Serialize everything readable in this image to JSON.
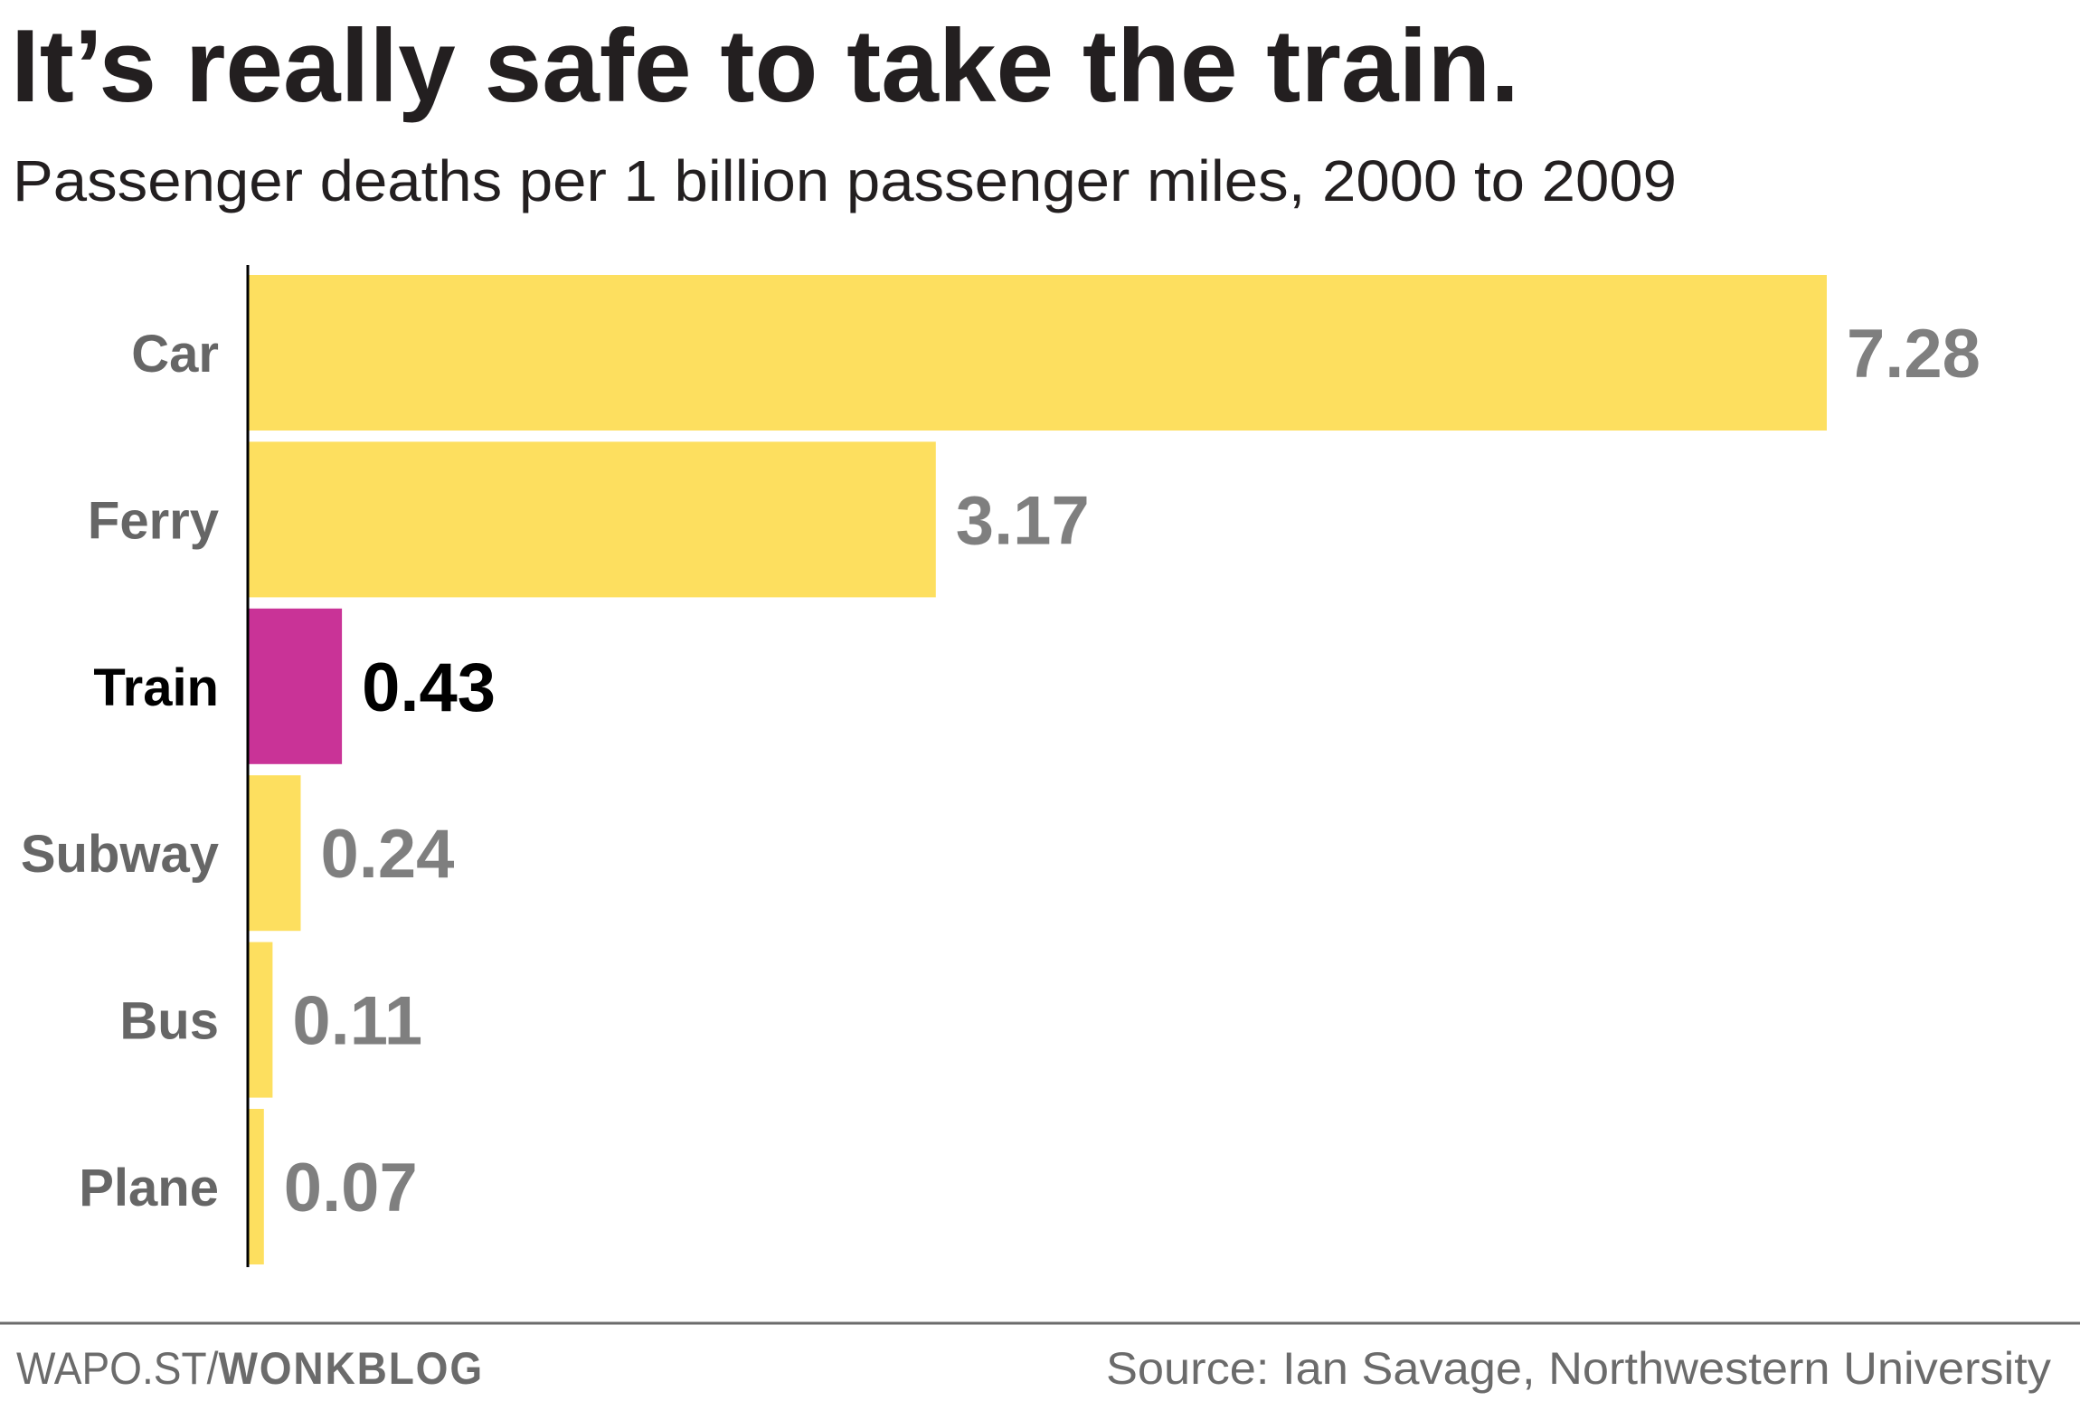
{
  "chart_data": {
    "type": "bar",
    "orientation": "horizontal",
    "title": "It’s really safe to take the train.",
    "subtitle": "Passenger deaths per 1 billion passenger miles, 2000 to 2009",
    "xlabel": "",
    "ylabel": "",
    "categories": [
      "Car",
      "Ferry",
      "Train",
      "Subway",
      "Bus",
      "Plane"
    ],
    "values": [
      7.28,
      3.17,
      0.43,
      0.24,
      0.11,
      0.07
    ],
    "value_labels": [
      "7.28",
      "3.17",
      "0.43",
      "0.24",
      "0.11",
      "0.07"
    ],
    "highlighted_category": "Train",
    "xlim": [
      0,
      7.28
    ],
    "grid": false,
    "legend": "none",
    "colors": {
      "default_bar": "#FDDF5F",
      "highlight_bar": "#C93397",
      "axis": "#000000"
    }
  },
  "footer": {
    "credit_prefix": "WAPO.ST/",
    "credit_brand": "WONKBLOG",
    "source": "Source: Ian Savage, Northwestern University"
  }
}
